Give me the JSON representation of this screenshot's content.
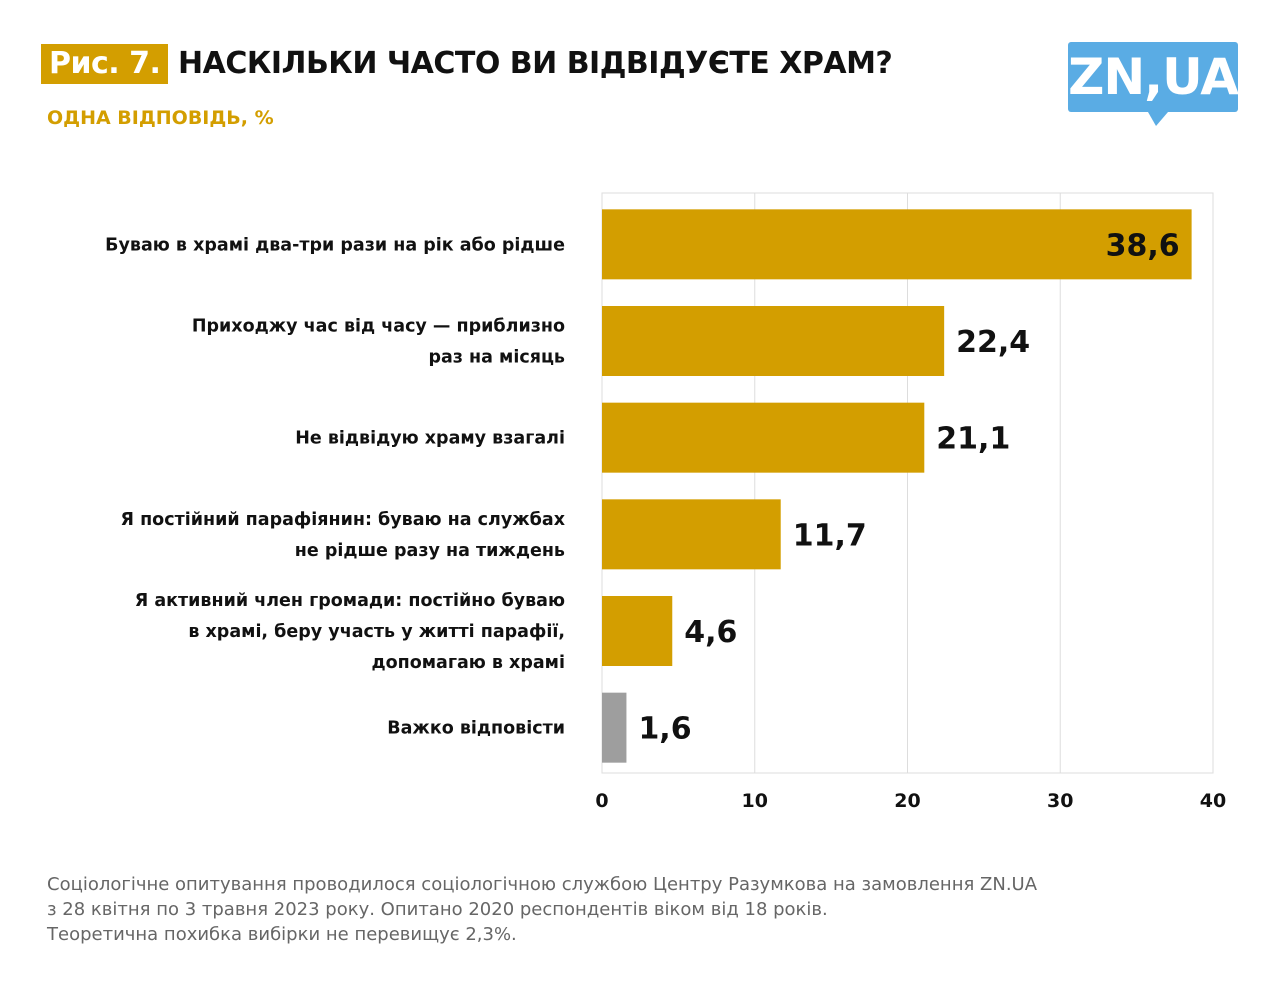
{
  "header": {
    "figure_label": "Рис. 7.",
    "title": "НАСКІЛЬКИ ЧАСТО ВИ ВІДВІДУЄТЕ ХРАМ?",
    "subtitle": "ОДНА ВІДПОВІДЬ, %",
    "logo_text": "ZN,UA"
  },
  "chart_data": {
    "type": "bar",
    "orientation": "horizontal",
    "categories": [
      [
        "Буваю в храмі два-три рази на рік або рідше"
      ],
      [
        "Приходжу час від часу — приблизно",
        "раз на місяць"
      ],
      [
        "Не відвідую храму взагалі"
      ],
      [
        "Я постійний парафіянин: буваю на службах",
        "не рідше разу на тиждень"
      ],
      [
        "Я активний член громади: постійно буваю",
        "в храмі, беру участь у житті парафії,",
        "допомагаю в храмі"
      ],
      [
        "Важко відповісти"
      ]
    ],
    "values": [
      38.6,
      22.4,
      21.1,
      11.7,
      4.6,
      1.6
    ],
    "value_labels": [
      "38,6",
      "22,4",
      "21,1",
      "11,7",
      "4,6",
      "1,6"
    ],
    "colors": [
      "#d39e00",
      "#d39e00",
      "#d39e00",
      "#d39e00",
      "#d39e00",
      "#9e9e9e"
    ],
    "xlim": [
      0,
      40
    ],
    "xticks": [
      0,
      10,
      20,
      30,
      40
    ],
    "grid": true
  },
  "footnote": [
    "Соціологічне опитування проводилося соціологічною службою Центру Разумкова на замовлення ZN.UA",
    "з 28 квітня по 3 травня 2023 року. Опитано 2020 респондентів віком від 18 років.",
    "Теоретична похибка вибірки не перевищує 2,3%."
  ]
}
